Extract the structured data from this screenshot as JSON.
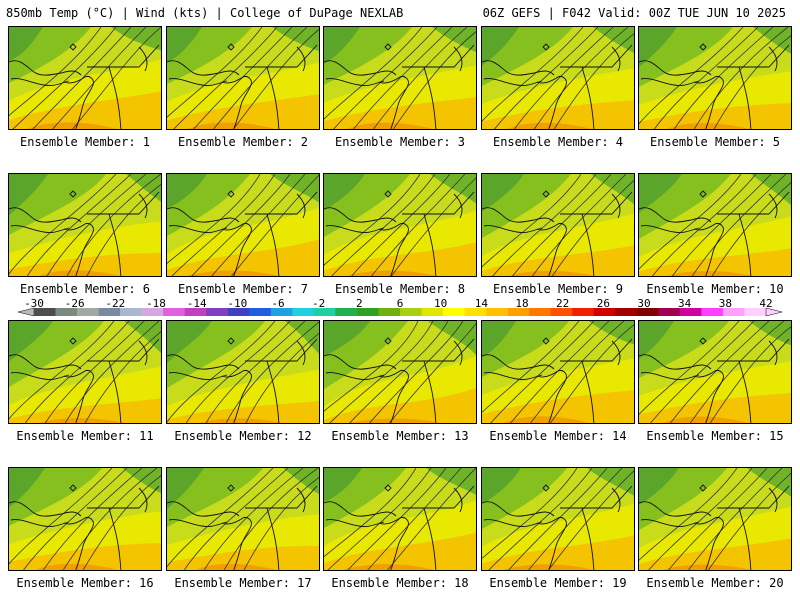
{
  "header": {
    "left": "850mb Temp (°C) | Wind (kts) | College of DuPage NEXLAB",
    "right": "06Z GEFS | F042 Valid: 00Z TUE JUN 10 2025"
  },
  "colorbar": {
    "tick_labels": [
      "-30",
      "-26",
      "-22",
      "-18",
      "-14",
      "-10",
      "-6",
      "-2",
      "2",
      "6",
      "10",
      "14",
      "18",
      "22",
      "26",
      "30",
      "34",
      "38",
      "42"
    ],
    "colors": [
      "#4e4e4e",
      "#7a8a7e",
      "#a0aaa0",
      "#7a8aa0",
      "#a8b8d0",
      "#d4a8e0",
      "#e060e0",
      "#c040c0",
      "#8040c0",
      "#4040c0",
      "#2060e0",
      "#20a0e0",
      "#20d0e0",
      "#20d0a0",
      "#20b050",
      "#30a020",
      "#70b010",
      "#a8d010",
      "#e0e800",
      "#ffff00",
      "#ffe000",
      "#ffc000",
      "#ffa000",
      "#ff7800",
      "#ff5000",
      "#f02000",
      "#d00000",
      "#a00000",
      "#800000",
      "#a00050",
      "#d000a0",
      "#ff40ff",
      "#ffa0ff",
      "#ffd0ff"
    ]
  },
  "panels": [
    {
      "label": "Ensemble Member: 1"
    },
    {
      "label": "Ensemble Member: 2"
    },
    {
      "label": "Ensemble Member: 3"
    },
    {
      "label": "Ensemble Member: 4"
    },
    {
      "label": "Ensemble Member: 5"
    },
    {
      "label": "Ensemble Member: 6"
    },
    {
      "label": "Ensemble Member: 7"
    },
    {
      "label": "Ensemble Member: 8"
    },
    {
      "label": "Ensemble Member: 9"
    },
    {
      "label": "Ensemble Member: 10"
    },
    {
      "label": "Ensemble Member: 11"
    },
    {
      "label": "Ensemble Member: 12"
    },
    {
      "label": "Ensemble Member: 13"
    },
    {
      "label": "Ensemble Member: 14"
    },
    {
      "label": "Ensemble Member: 15"
    },
    {
      "label": "Ensemble Member: 16"
    },
    {
      "label": "Ensemble Member: 17"
    },
    {
      "label": "Ensemble Member: 18"
    },
    {
      "label": "Ensemble Member: 19"
    },
    {
      "label": "Ensemble Member: 20"
    }
  ]
}
